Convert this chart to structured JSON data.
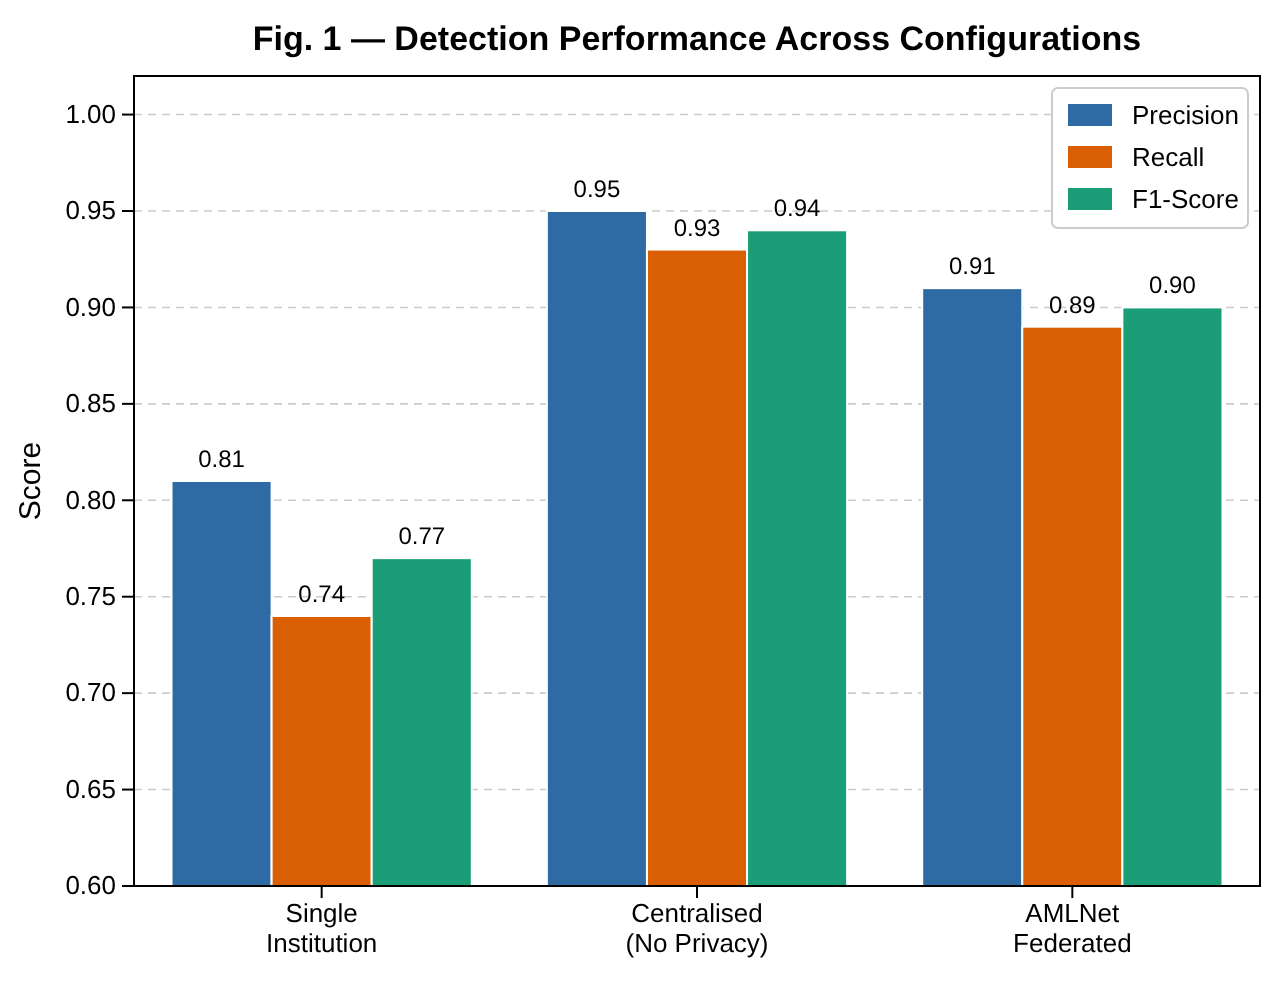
{
  "chart_data": {
    "type": "bar",
    "title": "Fig. 1 — Detection Performance Across Configurations",
    "ylabel": "Score",
    "categories": [
      "Single\nInstitution",
      "Centralised\n(No Privacy)",
      "AMLNet\nFederated"
    ],
    "series": [
      {
        "name": "Precision",
        "color": "#2e6aa3",
        "values": [
          0.81,
          0.95,
          0.91
        ],
        "value_labels": [
          "0.81",
          "0.95",
          "0.91"
        ]
      },
      {
        "name": "Recall",
        "color": "#d95f02",
        "values": [
          0.74,
          0.93,
          0.89
        ],
        "value_labels": [
          "0.74",
          "0.93",
          "0.89"
        ]
      },
      {
        "name": "F1-Score",
        "color": "#1b9e77",
        "values": [
          0.77,
          0.94,
          0.9
        ],
        "value_labels": [
          "0.77",
          "0.94",
          "0.90"
        ]
      }
    ],
    "ylim": [
      0.6,
      1.02
    ],
    "yticks": [
      {
        "value": 0.6,
        "label": "0.60"
      },
      {
        "value": 0.65,
        "label": "0.65"
      },
      {
        "value": 0.7,
        "label": "0.70"
      },
      {
        "value": 0.75,
        "label": "0.75"
      },
      {
        "value": 0.8,
        "label": "0.80"
      },
      {
        "value": 0.85,
        "label": "0.85"
      },
      {
        "value": 0.9,
        "label": "0.90"
      },
      {
        "value": 0.95,
        "label": "0.95"
      },
      {
        "value": 1.0,
        "label": "1.00"
      }
    ],
    "grid": "y",
    "legend": "top right"
  }
}
